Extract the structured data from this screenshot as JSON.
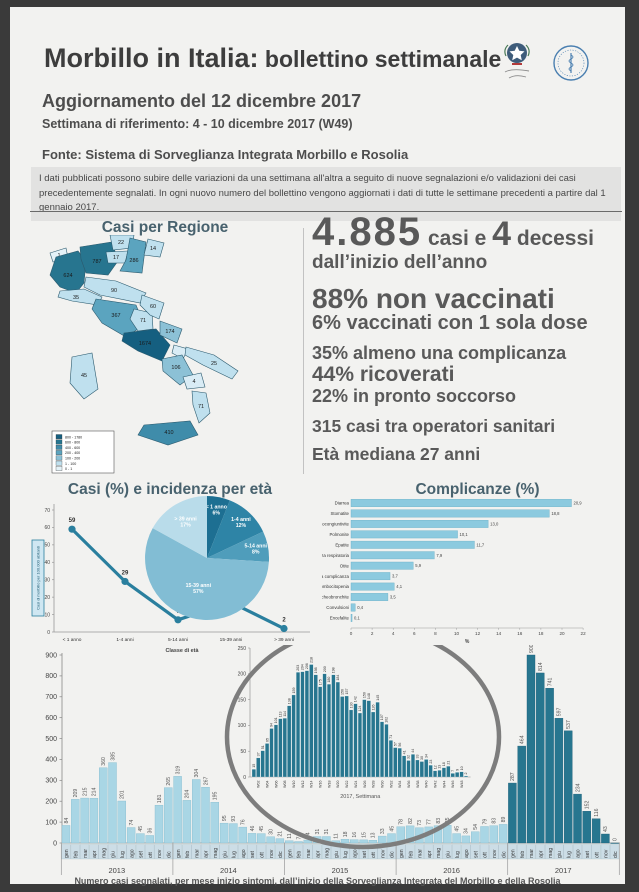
{
  "header": {
    "title_main": "Morbillo in Italia:",
    "title_sub": " bollettino settimanale",
    "update": "Aggiornamento del 12 dicembre 2017",
    "week_ref": "Settimana di riferimento:  4 - 10 dicembre 2017 (W49)",
    "source": "Fonte: Sistema di Sorveglianza Integrata Morbillo e Rosolia",
    "disclaimer": "I dati pubblicati possono subire delle variazioni da una settimana all'altra a seguito di nuove segnalazioni e/o validazioni dei casi precedentemente segnalati. In ogni nuovo numero del bollettino vengono aggiornati i dati di tutte le settimane precedenti a partire dal 1 gennaio 2017.",
    "logos": [
      "ministero-della-salute",
      "istituto-superiore-di-sanita"
    ]
  },
  "key_stats": {
    "cases_total": "4.885",
    "cases_label": " casi e ",
    "deaths": "4",
    "deaths_label": " decessi",
    "since_label": "dall’inizio dell’anno",
    "not_vaccinated": "88% non vaccinati",
    "one_dose": "6% vaccinati con 1 sola dose",
    "complication": "35% almeno una complicanza",
    "hospitalized": "44% ricoverati",
    "emergency_room": "22% in pronto soccorso",
    "healthcare_workers": "315 casi tra operatori sanitari",
    "median_age": "Età mediana 27 anni"
  },
  "map": {
    "title": "Casi per Regione",
    "legend": [
      {
        "range": "800 - 1780",
        "color": "#155f80"
      },
      {
        "range": "600 - 800",
        "color": "#27758f"
      },
      {
        "range": "400 - 600",
        "color": "#3f8caa"
      },
      {
        "range": "200 - 400",
        "color": "#5ba4bf"
      },
      {
        "range": "100 - 200",
        "color": "#8cc1d6"
      },
      {
        "range": "1 - 100",
        "color": "#bfe0ee"
      },
      {
        "range": "0 - 1",
        "color": "#e4f2f8"
      }
    ],
    "regions": [
      {
        "name": "valle-daosta",
        "cases": "1",
        "color": "#e4f2f8"
      },
      {
        "name": "piemonte",
        "cases": "624",
        "color": "#27758f"
      },
      {
        "name": "lombardia",
        "cases": "787",
        "color": "#27758f"
      },
      {
        "name": "bolzano",
        "cases": "22",
        "color": "#bfe0ee"
      },
      {
        "name": "trento",
        "cases": "17",
        "color": "#bfe0ee"
      },
      {
        "name": "veneto",
        "cases": "286",
        "color": "#5ba4bf"
      },
      {
        "name": "friuli",
        "cases": "14",
        "color": "#bfe0ee"
      },
      {
        "name": "liguria",
        "cases": "35",
        "color": "#bfe0ee"
      },
      {
        "name": "emilia-romagna",
        "cases": "90",
        "color": "#bfe0ee"
      },
      {
        "name": "toscana",
        "cases": "367",
        "color": "#5ba4bf"
      },
      {
        "name": "umbria",
        "cases": "71",
        "color": "#bfe0ee"
      },
      {
        "name": "marche",
        "cases": "60",
        "color": "#bfe0ee"
      },
      {
        "name": "lazio",
        "cases": "1674",
        "color": "#155f80"
      },
      {
        "name": "abruzzo",
        "cases": "174",
        "color": "#8cc1d6"
      },
      {
        "name": "molise",
        "cases": "",
        "color": "#d9ecf5"
      },
      {
        "name": "campania",
        "cases": "106",
        "color": "#8cc1d6"
      },
      {
        "name": "puglia",
        "cases": "25",
        "color": "#bfe0ee"
      },
      {
        "name": "basilicata",
        "cases": "4",
        "color": "#d9ecf5"
      },
      {
        "name": "calabria",
        "cases": "71",
        "color": "#bfe0ee"
      },
      {
        "name": "sicilia",
        "cases": "410",
        "color": "#3f8caa"
      },
      {
        "name": "sardegna",
        "cases": "45",
        "color": "#bfe0ee"
      }
    ]
  },
  "chart_data": [
    {
      "id": "incidence-by-age",
      "type": "line",
      "title": "Casi (%) e incidenza per età",
      "categories": [
        "< 1 anno",
        "1-4 anni",
        "5-14 anni",
        "15-39 anni",
        "> 39 anni"
      ],
      "values": [
        59,
        29,
        7,
        17,
        2
      ],
      "ylabel": "Casi di morbillo per 100.000 abitanti",
      "xlabel": "Classe di età",
      "ylim": [
        0,
        70
      ],
      "ytick_step": 10,
      "grid": false,
      "line_color": "#2a7f9e"
    },
    {
      "id": "cases-share-by-age",
      "type": "pie",
      "slices": [
        {
          "label": "< 1 anno",
          "pct": 6,
          "color": "#1d6f92"
        },
        {
          "label": "1-4 anni",
          "pct": 12,
          "color": "#2e84a6"
        },
        {
          "label": "5-14 anni",
          "pct": 8,
          "color": "#4f9dbb"
        },
        {
          "label": "15-39 anni",
          "pct": 57,
          "color": "#82bdd4"
        },
        {
          "label": "> 39 anni",
          "pct": 17,
          "color": "#b9dcea"
        }
      ]
    },
    {
      "id": "complications",
      "type": "bar",
      "orientation": "horizontal",
      "title": "Complicanze (%)",
      "categories": [
        "Diarrea",
        "Stomatite",
        "Cheratocongiuntivite",
        "Polmonite",
        "Epatite",
        "Insufficienza respiratoria",
        "Otite",
        "Altra complicanza",
        "Trombocitopenia",
        "Laringotracheobronchite",
        "Convulsioni",
        "Encefalite"
      ],
      "values": [
        20.9,
        18.8,
        13.0,
        10.1,
        11.7,
        7.9,
        5.9,
        3.7,
        4.1,
        3.5,
        0.4,
        0.1
      ],
      "value_labels": [
        "20,9",
        "18,8",
        "13,0",
        "10,1",
        "11,7",
        "7,9",
        "5,9",
        "3,7",
        "4,1",
        "3,5",
        "0,4",
        "0,1"
      ],
      "xlabel": "%",
      "xlim": [
        0,
        22
      ],
      "xtick_step": 2,
      "bar_color": "#8ccadf"
    },
    {
      "id": "monthly-cases",
      "type": "bar",
      "caption": "Numero casi segnalati, per mese inizio sintomi, dall’inizio della Sorveglianza Integrata del Morbillo e della Rosolia",
      "ylim": [
        0,
        900
      ],
      "ytick_step": 100,
      "months": [
        "gen",
        "feb",
        "mar",
        "apr",
        "mag",
        "giu",
        "lug",
        "ago",
        "set",
        "ott",
        "nov",
        "dic"
      ],
      "years": [
        {
          "year": "2013",
          "highlight": false,
          "values": [
            84,
            209,
            215,
            214,
            360,
            385,
            201,
            74,
            45,
            36,
            181,
            265
          ]
        },
        {
          "year": "2014",
          "highlight": false,
          "values": [
            319,
            204,
            304,
            267,
            195,
            95,
            93,
            76,
            46,
            45,
            30,
            21
          ]
        },
        {
          "year": "2015",
          "highlight": false,
          "values": [
            11,
            7,
            14,
            31,
            31,
            11,
            18,
            16,
            15,
            13,
            33,
            45
          ]
        },
        {
          "year": "2016",
          "highlight": false,
          "values": [
            78,
            82,
            73,
            77,
            83,
            85,
            45,
            34,
            54,
            79,
            83,
            89
          ]
        },
        {
          "year": "2017",
          "highlight": true,
          "values": [
            287,
            464,
            900,
            814,
            741,
            597,
            537,
            234,
            152,
            116,
            43,
            0
          ]
        }
      ],
      "bar_color": "#a9d6e5",
      "highlight_color": "#27768f"
    },
    {
      "id": "weekly-2017-inset",
      "type": "bar",
      "xlabel": "2017, Settimana",
      "ylim": [
        0,
        250
      ],
      "ytick_step": 50,
      "week_tick_labels": [
        "W02",
        "W04",
        "W06",
        "W08",
        "W10",
        "W12",
        "W14",
        "W16",
        "W18",
        "W20",
        "W22",
        "W24",
        "W26",
        "W28",
        "W30",
        "W32",
        "W34",
        "W36",
        "W38",
        "W40",
        "W42",
        "W44",
        "W46",
        "W48"
      ],
      "values": [
        15,
        37,
        51,
        65,
        94,
        101,
        113,
        114,
        138,
        159,
        203,
        204,
        206,
        218,
        198,
        175,
        200,
        180,
        198,
        184,
        156,
        157,
        130,
        142,
        124,
        150,
        148,
        126,
        145,
        107,
        102,
        71,
        57,
        56,
        41,
        32,
        44,
        33,
        30,
        34,
        23,
        12,
        13,
        18,
        21,
        7,
        9,
        10,
        2
      ],
      "bar_color": "#27768f"
    }
  ]
}
